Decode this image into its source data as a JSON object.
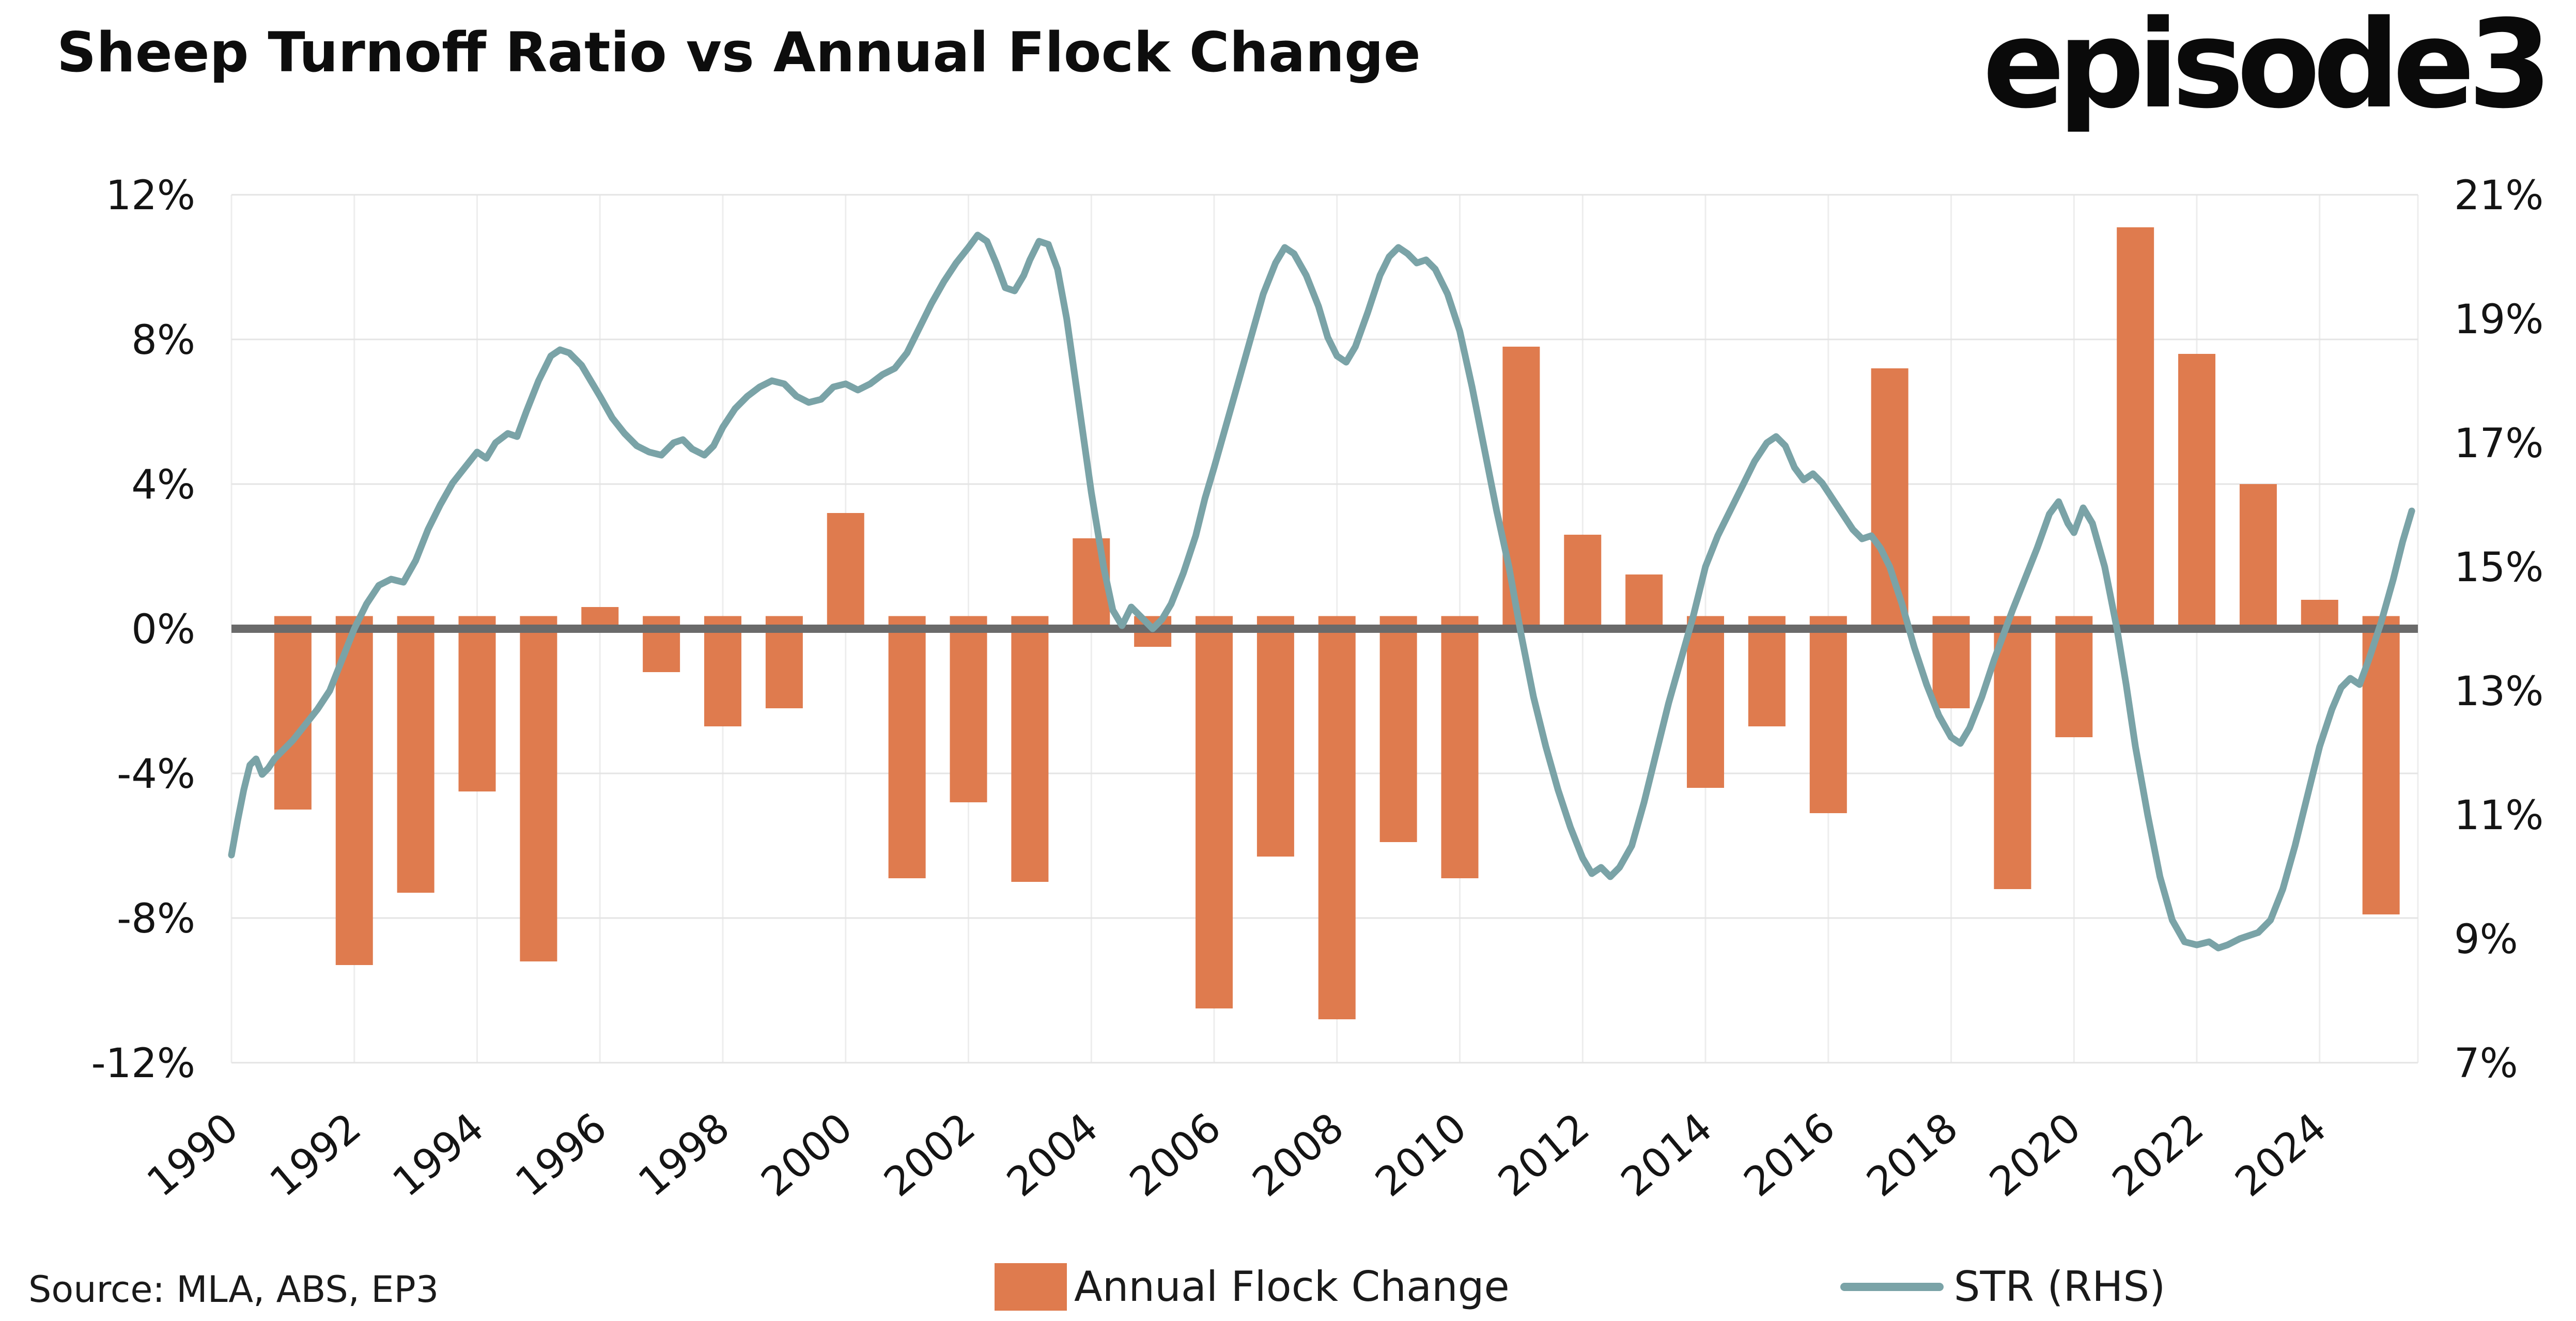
{
  "title": "Sheep Turnoff Ratio vs Annual Flock Change",
  "logo": "episode3",
  "source": "Source: MLA, ABS, EP3",
  "legend": {
    "bar_label": "Annual Flock Change",
    "line_label": "STR (RHS)"
  },
  "colors": {
    "bar": "#DF7B4E",
    "line": "#7AA3A7",
    "zero_line": "#6A6A6A",
    "grid": "#E4E4E4",
    "grid_vertical": "#EDEDED",
    "text": "#141414",
    "background": "#FFFFFF"
  },
  "chart_data": {
    "type": "combo",
    "title": "Sheep Turnoff Ratio vs Annual Flock Change",
    "grid": true,
    "legend_position": "bottom",
    "x_axis": {
      "min": 1990,
      "max": 2025.6,
      "tick_values": [
        1990,
        1992,
        1994,
        1996,
        1998,
        2000,
        2002,
        2004,
        2006,
        2008,
        2010,
        2012,
        2014,
        2016,
        2018,
        2020,
        2022,
        2024
      ]
    },
    "left_axis": {
      "label": "Annual Flock Change",
      "min": -12,
      "max": 12,
      "tick_values": [
        12,
        8,
        4,
        0,
        -4,
        -8,
        -12
      ],
      "tick_labels": [
        "12%",
        "8%",
        "4%",
        "0%",
        "-4%",
        "-8%",
        "-12%"
      ]
    },
    "right_axis": {
      "label": "STR (RHS)",
      "min": 7,
      "max": 21,
      "tick_values": [
        21,
        19,
        17,
        15,
        13,
        11,
        9,
        7
      ],
      "tick_labels": [
        "21%",
        "19%",
        "17%",
        "15%",
        "13%",
        "11%",
        "9%",
        "7%"
      ]
    },
    "series": [
      {
        "name": "Annual Flock Change",
        "type": "bar",
        "axis": "left",
        "unit": "%",
        "years": [
          1991,
          1992,
          1993,
          1994,
          1995,
          1996,
          1997,
          1998,
          1999,
          2000,
          2001,
          2002,
          2003,
          2004,
          2005,
          2006,
          2007,
          2008,
          2009,
          2010,
          2011,
          2012,
          2013,
          2014,
          2015,
          2016,
          2017,
          2018,
          2019,
          2020,
          2021,
          2022,
          2023,
          2024,
          2025
        ],
        "values": [
          -5.0,
          -9.3,
          -7.3,
          -4.5,
          -9.2,
          0.6,
          -1.2,
          -2.7,
          -2.2,
          3.2,
          -6.9,
          -4.8,
          -7.0,
          2.5,
          -0.5,
          -10.5,
          -6.3,
          -10.8,
          -5.9,
          -6.9,
          7.8,
          2.6,
          1.5,
          -4.4,
          -2.7,
          -5.1,
          7.2,
          -2.2,
          -7.2,
          -3.0,
          11.1,
          7.6,
          4.0,
          0.8,
          -7.9
        ]
      },
      {
        "name": "STR (RHS)",
        "type": "line",
        "axis": "right",
        "unit": "%",
        "points": [
          [
            1990.0,
            10.35
          ],
          [
            1990.1,
            10.9
          ],
          [
            1990.2,
            11.4
          ],
          [
            1990.3,
            11.8
          ],
          [
            1990.4,
            11.9
          ],
          [
            1990.5,
            11.65
          ],
          [
            1990.6,
            11.75
          ],
          [
            1990.7,
            11.9
          ],
          [
            1990.8,
            12.0
          ],
          [
            1990.9,
            12.1
          ],
          [
            1991.0,
            12.2
          ],
          [
            1991.2,
            12.45
          ],
          [
            1991.4,
            12.7
          ],
          [
            1991.6,
            13.0
          ],
          [
            1991.8,
            13.5
          ],
          [
            1992.0,
            14.0
          ],
          [
            1992.2,
            14.4
          ],
          [
            1992.4,
            14.7
          ],
          [
            1992.6,
            14.8
          ],
          [
            1992.8,
            14.75
          ],
          [
            1993.0,
            15.1
          ],
          [
            1993.2,
            15.6
          ],
          [
            1993.4,
            16.0
          ],
          [
            1993.6,
            16.35
          ],
          [
            1993.8,
            16.6
          ],
          [
            1994.0,
            16.85
          ],
          [
            1994.15,
            16.75
          ],
          [
            1994.3,
            17.0
          ],
          [
            1994.5,
            17.15
          ],
          [
            1994.65,
            17.1
          ],
          [
            1994.8,
            17.5
          ],
          [
            1995.0,
            18.0
          ],
          [
            1995.2,
            18.4
          ],
          [
            1995.35,
            18.5
          ],
          [
            1995.5,
            18.45
          ],
          [
            1995.7,
            18.25
          ],
          [
            1995.85,
            18.0
          ],
          [
            1996.0,
            17.75
          ],
          [
            1996.2,
            17.4
          ],
          [
            1996.4,
            17.15
          ],
          [
            1996.6,
            16.95
          ],
          [
            1996.8,
            16.85
          ],
          [
            1997.0,
            16.8
          ],
          [
            1997.2,
            17.0
          ],
          [
            1997.35,
            17.05
          ],
          [
            1997.5,
            16.9
          ],
          [
            1997.7,
            16.8
          ],
          [
            1997.85,
            16.95
          ],
          [
            1998.0,
            17.25
          ],
          [
            1998.2,
            17.55
          ],
          [
            1998.4,
            17.75
          ],
          [
            1998.6,
            17.9
          ],
          [
            1998.8,
            18.0
          ],
          [
            1999.0,
            17.95
          ],
          [
            1999.2,
            17.75
          ],
          [
            1999.4,
            17.65
          ],
          [
            1999.6,
            17.7
          ],
          [
            1999.8,
            17.9
          ],
          [
            2000.0,
            17.95
          ],
          [
            2000.2,
            17.85
          ],
          [
            2000.4,
            17.95
          ],
          [
            2000.6,
            18.1
          ],
          [
            2000.8,
            18.2
          ],
          [
            2001.0,
            18.45
          ],
          [
            2001.2,
            18.85
          ],
          [
            2001.4,
            19.25
          ],
          [
            2001.6,
            19.6
          ],
          [
            2001.8,
            19.9
          ],
          [
            2002.0,
            20.15
          ],
          [
            2002.15,
            20.35
          ],
          [
            2002.3,
            20.25
          ],
          [
            2002.45,
            19.9
          ],
          [
            2002.6,
            19.5
          ],
          [
            2002.75,
            19.45
          ],
          [
            2002.9,
            19.7
          ],
          [
            2003.0,
            19.95
          ],
          [
            2003.15,
            20.25
          ],
          [
            2003.3,
            20.2
          ],
          [
            2003.45,
            19.8
          ],
          [
            2003.6,
            19.0
          ],
          [
            2003.8,
            17.6
          ],
          [
            2004.0,
            16.2
          ],
          [
            2004.2,
            15.0
          ],
          [
            2004.35,
            14.3
          ],
          [
            2004.5,
            14.05
          ],
          [
            2004.65,
            14.35
          ],
          [
            2004.8,
            14.2
          ],
          [
            2005.0,
            14.0
          ],
          [
            2005.15,
            14.15
          ],
          [
            2005.3,
            14.4
          ],
          [
            2005.5,
            14.9
          ],
          [
            2005.7,
            15.5
          ],
          [
            2005.85,
            16.1
          ],
          [
            2006.0,
            16.6
          ],
          [
            2006.2,
            17.3
          ],
          [
            2006.4,
            18.0
          ],
          [
            2006.6,
            18.7
          ],
          [
            2006.8,
            19.4
          ],
          [
            2007.0,
            19.9
          ],
          [
            2007.15,
            20.15
          ],
          [
            2007.3,
            20.05
          ],
          [
            2007.5,
            19.7
          ],
          [
            2007.7,
            19.2
          ],
          [
            2007.85,
            18.7
          ],
          [
            2008.0,
            18.4
          ],
          [
            2008.15,
            18.3
          ],
          [
            2008.3,
            18.55
          ],
          [
            2008.5,
            19.1
          ],
          [
            2008.7,
            19.7
          ],
          [
            2008.85,
            20.0
          ],
          [
            2009.0,
            20.15
          ],
          [
            2009.15,
            20.05
          ],
          [
            2009.3,
            19.9
          ],
          [
            2009.45,
            19.95
          ],
          [
            2009.6,
            19.8
          ],
          [
            2009.8,
            19.4
          ],
          [
            2010.0,
            18.8
          ],
          [
            2010.2,
            17.9
          ],
          [
            2010.4,
            16.9
          ],
          [
            2010.6,
            15.9
          ],
          [
            2010.8,
            15.0
          ],
          [
            2011.0,
            13.9
          ],
          [
            2011.2,
            12.9
          ],
          [
            2011.4,
            12.1
          ],
          [
            2011.6,
            11.4
          ],
          [
            2011.8,
            10.8
          ],
          [
            2012.0,
            10.3
          ],
          [
            2012.15,
            10.05
          ],
          [
            2012.3,
            10.15
          ],
          [
            2012.45,
            10.0
          ],
          [
            2012.6,
            10.15
          ],
          [
            2012.8,
            10.5
          ],
          [
            2013.0,
            11.2
          ],
          [
            2013.2,
            12.0
          ],
          [
            2013.4,
            12.8
          ],
          [
            2013.6,
            13.5
          ],
          [
            2013.8,
            14.2
          ],
          [
            2014.0,
            15.0
          ],
          [
            2014.2,
            15.5
          ],
          [
            2014.4,
            15.9
          ],
          [
            2014.6,
            16.3
          ],
          [
            2014.8,
            16.7
          ],
          [
            2015.0,
            17.0
          ],
          [
            2015.15,
            17.1
          ],
          [
            2015.3,
            16.95
          ],
          [
            2015.45,
            16.6
          ],
          [
            2015.6,
            16.4
          ],
          [
            2015.75,
            16.5
          ],
          [
            2015.9,
            16.35
          ],
          [
            2016.0,
            16.2
          ],
          [
            2016.2,
            15.9
          ],
          [
            2016.4,
            15.6
          ],
          [
            2016.55,
            15.45
          ],
          [
            2016.7,
            15.5
          ],
          [
            2016.85,
            15.3
          ],
          [
            2017.0,
            15.0
          ],
          [
            2017.2,
            14.4
          ],
          [
            2017.4,
            13.7
          ],
          [
            2017.6,
            13.1
          ],
          [
            2017.8,
            12.6
          ],
          [
            2018.0,
            12.25
          ],
          [
            2018.15,
            12.15
          ],
          [
            2018.3,
            12.4
          ],
          [
            2018.5,
            12.9
          ],
          [
            2018.7,
            13.5
          ],
          [
            2018.85,
            13.9
          ],
          [
            2019.0,
            14.3
          ],
          [
            2019.2,
            14.8
          ],
          [
            2019.4,
            15.3
          ],
          [
            2019.6,
            15.85
          ],
          [
            2019.75,
            16.05
          ],
          [
            2019.9,
            15.7
          ],
          [
            2020.0,
            15.55
          ],
          [
            2020.15,
            15.95
          ],
          [
            2020.3,
            15.7
          ],
          [
            2020.5,
            15.0
          ],
          [
            2020.7,
            14.0
          ],
          [
            2020.85,
            13.1
          ],
          [
            2021.0,
            12.1
          ],
          [
            2021.2,
            11.0
          ],
          [
            2021.4,
            10.0
          ],
          [
            2021.6,
            9.3
          ],
          [
            2021.8,
            8.95
          ],
          [
            2022.0,
            8.9
          ],
          [
            2022.2,
            8.95
          ],
          [
            2022.35,
            8.85
          ],
          [
            2022.5,
            8.9
          ],
          [
            2022.7,
            9.0
          ],
          [
            2022.85,
            9.05
          ],
          [
            2023.0,
            9.1
          ],
          [
            2023.2,
            9.3
          ],
          [
            2023.4,
            9.8
          ],
          [
            2023.6,
            10.5
          ],
          [
            2023.8,
            11.3
          ],
          [
            2024.0,
            12.1
          ],
          [
            2024.2,
            12.7
          ],
          [
            2024.35,
            13.05
          ],
          [
            2024.5,
            13.2
          ],
          [
            2024.65,
            13.1
          ],
          [
            2024.8,
            13.5
          ],
          [
            2025.0,
            14.1
          ],
          [
            2025.2,
            14.8
          ],
          [
            2025.35,
            15.4
          ],
          [
            2025.5,
            15.9
          ]
        ]
      }
    ]
  }
}
